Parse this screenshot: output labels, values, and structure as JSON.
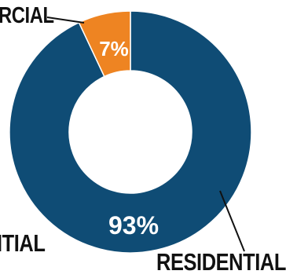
{
  "chart_data": {
    "type": "pie",
    "donut": true,
    "categories": [
      "RESIDENTIAL",
      "COMMERCIAL"
    ],
    "values": [
      93,
      7
    ],
    "value_labels": [
      "93%",
      "7%"
    ],
    "colors": [
      "#0f4c75",
      "#ee8422"
    ],
    "legend": "none"
  },
  "labels": {
    "commercial_partial": "RCIAL",
    "residential_partial": "ITIAL",
    "residential": "RESIDENTIAL"
  }
}
